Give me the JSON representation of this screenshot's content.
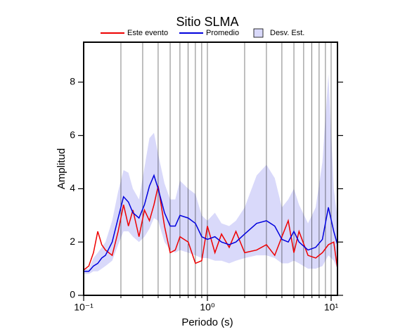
{
  "chart_data": {
    "type": "line",
    "title": "Sitio SLMA",
    "x_label": "Periodo (s)",
    "y_label": "Amplitud",
    "xscale": "log",
    "xlim": [
      0.1,
      11.25
    ],
    "ylim": [
      0,
      9.5
    ],
    "xticks": [
      {
        "value": 0.1,
        "label": "10⁻¹"
      },
      {
        "value": 1,
        "label": "10⁰"
      },
      {
        "value": 10,
        "label": "10¹"
      }
    ],
    "yticks": [
      0,
      2,
      4,
      6,
      8
    ],
    "xgrid": [
      0.2,
      0.3,
      0.4,
      0.5,
      0.6,
      0.7,
      0.8,
      0.9,
      2,
      3,
      4,
      5,
      6,
      7,
      8,
      9
    ],
    "legend": "top",
    "x": [
      0.1,
      0.11,
      0.12,
      0.13,
      0.14,
      0.15,
      0.17,
      0.19,
      0.21,
      0.23,
      0.25,
      0.28,
      0.31,
      0.34,
      0.37,
      0.4,
      0.45,
      0.5,
      0.55,
      0.6,
      0.7,
      0.8,
      0.9,
      1.0,
      1.15,
      1.3,
      1.5,
      1.7,
      2.0,
      2.5,
      3.0,
      3.5,
      4.0,
      4.5,
      5.0,
      5.5,
      6.5,
      7.5,
      8.5,
      9.5,
      10.5,
      11.25
    ],
    "band": {
      "name": "Desv. Est.",
      "color": "#d9d9fa",
      "lower": [
        0.8,
        0.8,
        0.9,
        0.9,
        1.0,
        1.1,
        1.3,
        1.9,
        2.4,
        2.4,
        2.2,
        2.0,
        2.2,
        2.5,
        2.9,
        2.8,
        2.0,
        1.7,
        1.6,
        1.7,
        1.6,
        1.5,
        1.4,
        1.4,
        1.3,
        1.3,
        1.2,
        1.3,
        1.4,
        1.5,
        1.5,
        1.4,
        1.2,
        1.2,
        1.3,
        1.2,
        1.0,
        1.0,
        1.1,
        1.5,
        1.3,
        1.0
      ],
      "upper": [
        1.0,
        1.0,
        1.4,
        1.6,
        1.8,
        2.0,
        2.8,
        3.9,
        4.7,
        4.6,
        4.0,
        3.6,
        4.8,
        5.9,
        6.1,
        5.3,
        4.2,
        3.6,
        3.6,
        4.3,
        4.0,
        3.8,
        3.0,
        2.8,
        3.1,
        2.7,
        2.6,
        2.8,
        3.3,
        4.5,
        4.9,
        4.4,
        3.3,
        3.6,
        4.0,
        3.4,
        2.7,
        3.3,
        5.0,
        8.3,
        4.0,
        2.9
      ]
    },
    "series": [
      {
        "name": "Este evento",
        "color": "#ee0000",
        "values": [
          0.95,
          1.1,
          1.6,
          2.4,
          1.9,
          1.7,
          1.5,
          2.4,
          3.4,
          2.6,
          3.2,
          2.2,
          3.2,
          2.8,
          3.4,
          4.1,
          2.6,
          1.6,
          1.7,
          2.2,
          2.0,
          1.2,
          1.3,
          2.6,
          1.6,
          2.3,
          1.8,
          2.4,
          1.6,
          1.7,
          1.9,
          1.5,
          2.2,
          2.8,
          1.6,
          2.4,
          1.5,
          1.4,
          1.6,
          1.9,
          2.0,
          1.0
        ]
      },
      {
        "name": "Promedio",
        "color": "#0000dd",
        "values": [
          0.9,
          0.9,
          1.1,
          1.2,
          1.4,
          1.5,
          2.0,
          2.9,
          3.7,
          3.5,
          3.1,
          2.9,
          3.4,
          4.1,
          4.5,
          4.0,
          3.1,
          2.6,
          2.6,
          3.0,
          2.9,
          2.7,
          2.2,
          2.1,
          2.2,
          2.0,
          1.9,
          2.0,
          2.3,
          2.7,
          2.8,
          2.6,
          2.1,
          2.0,
          2.4,
          2.0,
          1.7,
          1.8,
          2.1,
          3.3,
          2.4,
          1.9
        ]
      }
    ]
  }
}
